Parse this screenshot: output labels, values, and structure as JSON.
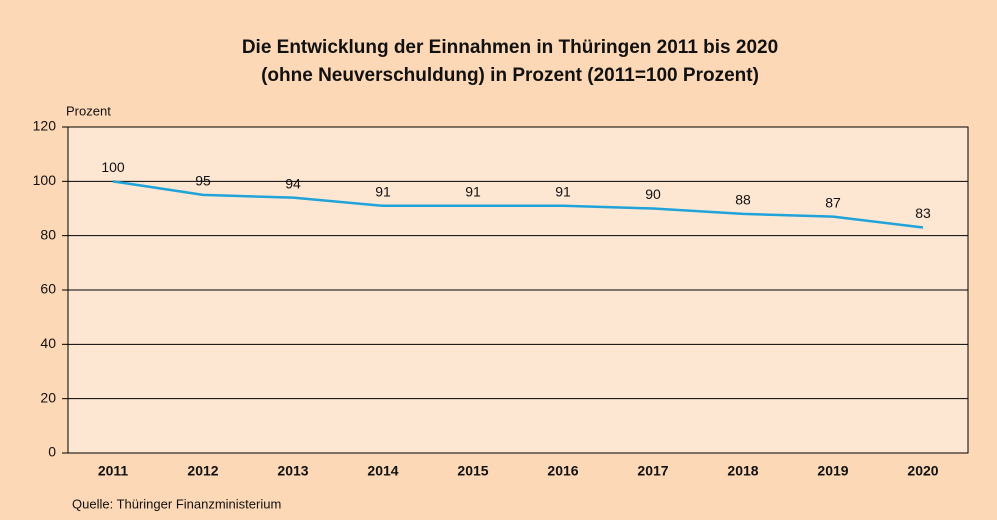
{
  "chart_data": {
    "type": "line",
    "title": "Die Entwicklung der Einnahmen in Thüringen 2011 bis 2020",
    "subtitle": "(ohne Neuverschuldung) in Prozent (2011=100 Prozent)",
    "y_label": "Prozent",
    "source": "Quelle: Thüringer Finanzministerium",
    "categories": [
      "2011",
      "2012",
      "2013",
      "2014",
      "2015",
      "2016",
      "2017",
      "2018",
      "2019",
      "2020"
    ],
    "values": [
      100,
      95,
      94,
      91,
      91,
      91,
      90,
      88,
      87,
      83
    ],
    "color": "#1fa3d9",
    "ylim": [
      0,
      120
    ],
    "yticks": [
      0,
      20,
      40,
      60,
      80,
      100,
      120
    ],
    "grid": true
  }
}
